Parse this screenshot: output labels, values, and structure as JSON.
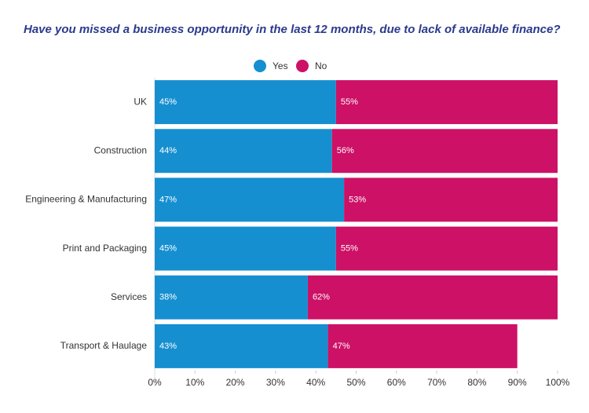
{
  "chart_data": {
    "type": "stacked_bar_horizontal",
    "title": "Have you missed a business opportunity in the last 12 months, due to lack of available finance?",
    "categories": [
      "UK",
      "Construction",
      "Engineering & Manufacturing",
      "Print and Packaging",
      "Services",
      "Transport & Haulage"
    ],
    "series": [
      {
        "name": "Yes",
        "color": "#168fd0",
        "values": [
          45,
          44,
          47,
          45,
          38,
          43
        ],
        "value_labels": [
          "45%",
          "44%",
          "47%",
          "45%",
          "38%",
          "43%"
        ]
      },
      {
        "name": "No",
        "color": "#cc1166",
        "values": [
          55,
          56,
          53,
          55,
          62,
          47
        ],
        "value_labels": [
          "55%",
          "56%",
          "53%",
          "55%",
          "62%",
          "47%"
        ]
      }
    ],
    "xlim": [
      0,
      100
    ],
    "xticks": [
      {
        "value": 0,
        "label": "0%"
      },
      {
        "value": 10,
        "label": "10%"
      },
      {
        "value": 20,
        "label": "20%"
      },
      {
        "value": 30,
        "label": "30%"
      },
      {
        "value": 40,
        "label": "40%"
      },
      {
        "value": 50,
        "label": "50%"
      },
      {
        "value": 60,
        "label": "60%"
      },
      {
        "value": 70,
        "label": "70%"
      },
      {
        "value": 80,
        "label": "80%"
      },
      {
        "value": 90,
        "label": "90%"
      },
      {
        "value": 100,
        "label": "100%"
      }
    ],
    "legend": "top"
  }
}
